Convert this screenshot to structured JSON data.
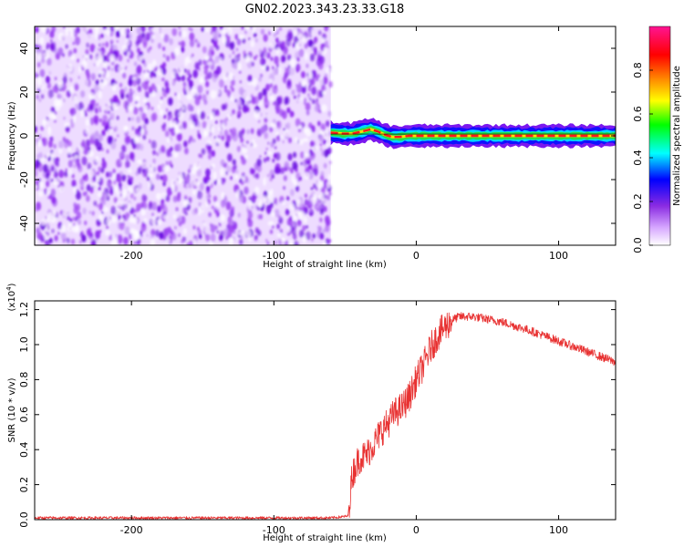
{
  "figure_title": "GN02.2023.343.23.33.G18",
  "chart_data": [
    {
      "type": "heatmap",
      "xlabel": "Height of straight line (km)",
      "ylabel": "Frequency (Hz)",
      "xlim": [
        -268,
        140
      ],
      "ylim": [
        -50,
        50
      ],
      "xticks": [
        -200,
        -100,
        0,
        100
      ],
      "yticks": [
        -40,
        -20,
        0,
        20,
        40
      ],
      "noise_region_x": [
        -268,
        -60
      ],
      "signal_center_hz": [
        [
          -60,
          1.5
        ],
        [
          -52,
          1.0
        ],
        [
          -45,
          1.0
        ],
        [
          -38,
          2.0
        ],
        [
          -32,
          3.0
        ],
        [
          -27,
          2.0
        ],
        [
          -22,
          0.5
        ],
        [
          -17,
          -0.5
        ],
        [
          -12,
          -0.5
        ],
        [
          -5,
          0.0
        ],
        [
          10,
          0.0
        ],
        [
          30,
          0.0
        ],
        [
          60,
          0.0
        ],
        [
          100,
          0.0
        ],
        [
          140,
          0.0
        ]
      ],
      "colorbar": {
        "label": "Normalized spectral amplitude",
        "range": [
          0.0,
          1.0
        ],
        "ticks": [
          0.0,
          0.2,
          0.4,
          0.6,
          0.8
        ],
        "colors": [
          "#ffffff",
          "#d7a8ff",
          "#8a2be2",
          "#0000ff",
          "#00ffff",
          "#00ff00",
          "#ffff00",
          "#ff8800",
          "#ff0000",
          "#ff1493"
        ]
      }
    },
    {
      "type": "line",
      "xlabel": "Height of straight line (km)",
      "ylabel": "SNR (10 * v/v)",
      "scale_label": "(x10",
      "scale_exp": "4",
      "scale_close": ")",
      "xlim": [
        -268,
        140
      ],
      "ylim": [
        0.0,
        1.25
      ],
      "xticks": [
        -200,
        -100,
        0,
        100
      ],
      "yticks": [
        0.0,
        0.2,
        0.4,
        0.6,
        0.8,
        1.0,
        1.2
      ],
      "series": [
        {
          "color": "#e83232",
          "x": [
            -268,
            -100,
            -60,
            -48,
            -45,
            -43,
            -40,
            -35,
            -30,
            -25,
            -20,
            -15,
            -10,
            -5,
            0,
            5,
            10,
            15,
            20,
            25,
            30,
            40,
            60,
            80,
            100,
            120,
            140
          ],
          "y": [
            0.01,
            0.01,
            0.01,
            0.02,
            0.25,
            0.3,
            0.35,
            0.37,
            0.43,
            0.5,
            0.55,
            0.61,
            0.64,
            0.7,
            0.8,
            0.88,
            0.98,
            1.05,
            1.1,
            1.14,
            1.16,
            1.16,
            1.13,
            1.08,
            1.02,
            0.96,
            0.9
          ]
        }
      ]
    }
  ]
}
